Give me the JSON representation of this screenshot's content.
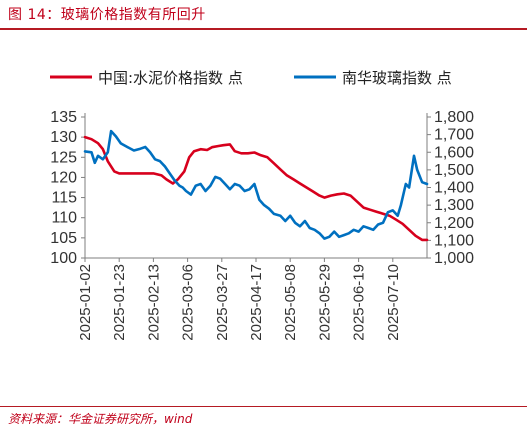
{
  "figure": {
    "title": "图 14：玻璃价格指数有所回升",
    "source": "资料来源：华金证券研究所，wind"
  },
  "chart_data": {
    "type": "line",
    "legend_position": "top",
    "grid": false,
    "x_ticks": [
      "2025-01-02",
      "2025-01-23",
      "2025-02-13",
      "2025-03-06",
      "2025-03-27",
      "2025-04-17",
      "2025-05-08",
      "2025-05-29",
      "2025-06-19",
      "2025-07-10"
    ],
    "x_range": [
      "2025-01-02",
      "2025-07-31"
    ],
    "y_left": {
      "ticks": [
        "100",
        "105",
        "110",
        "115",
        "120",
        "125",
        "130",
        "135"
      ],
      "range": [
        100,
        135
      ]
    },
    "y_right": {
      "ticks": [
        "1,000",
        "1,100",
        "1,200",
        "1,300",
        "1,400",
        "1,500",
        "1,600",
        "1,700",
        "1,800"
      ],
      "range": [
        1000,
        1800
      ]
    },
    "series": [
      {
        "name": "中国:水泥价格指数 点",
        "axis": "left",
        "color": "#d7001d",
        "points": [
          [
            "2025-01-02",
            130
          ],
          [
            "2025-01-06",
            129.5
          ],
          [
            "2025-01-10",
            128.5
          ],
          [
            "2025-01-13",
            127
          ],
          [
            "2025-01-16",
            124
          ],
          [
            "2025-01-20",
            121.5
          ],
          [
            "2025-01-23",
            121
          ],
          [
            "2025-01-30",
            121
          ],
          [
            "2025-02-06",
            121
          ],
          [
            "2025-02-13",
            121
          ],
          [
            "2025-02-18",
            120.5
          ],
          [
            "2025-02-21",
            119.5
          ],
          [
            "2025-02-25",
            118.5
          ],
          [
            "2025-02-28",
            119.5
          ],
          [
            "2025-03-04",
            121.5
          ],
          [
            "2025-03-07",
            125
          ],
          [
            "2025-03-10",
            126.5
          ],
          [
            "2025-03-14",
            127
          ],
          [
            "2025-03-18",
            126.8
          ],
          [
            "2025-03-21",
            127.5
          ],
          [
            "2025-03-25",
            127.8
          ],
          [
            "2025-03-28",
            128
          ],
          [
            "2025-04-01",
            128.2
          ],
          [
            "2025-04-04",
            126.5
          ],
          [
            "2025-04-08",
            126
          ],
          [
            "2025-04-12",
            126
          ],
          [
            "2025-04-16",
            126.2
          ],
          [
            "2025-04-20",
            125.5
          ],
          [
            "2025-04-24",
            125
          ],
          [
            "2025-04-28",
            123.5
          ],
          [
            "2025-05-02",
            122
          ],
          [
            "2025-05-06",
            120.5
          ],
          [
            "2025-05-10",
            119.5
          ],
          [
            "2025-05-14",
            118.5
          ],
          [
            "2025-05-18",
            117.5
          ],
          [
            "2025-05-22",
            116.5
          ],
          [
            "2025-05-26",
            115.5
          ],
          [
            "2025-05-29",
            115
          ],
          [
            "2025-06-02",
            115.5
          ],
          [
            "2025-06-06",
            115.8
          ],
          [
            "2025-06-10",
            116
          ],
          [
            "2025-06-14",
            115.5
          ],
          [
            "2025-06-18",
            114
          ],
          [
            "2025-06-22",
            112.5
          ],
          [
            "2025-06-26",
            112
          ],
          [
            "2025-06-30",
            111.5
          ],
          [
            "2025-07-04",
            111
          ],
          [
            "2025-07-08",
            110.5
          ],
          [
            "2025-07-12",
            109.5
          ],
          [
            "2025-07-16",
            108.5
          ],
          [
            "2025-07-20",
            107
          ],
          [
            "2025-07-24",
            105.5
          ],
          [
            "2025-07-28",
            104.5
          ],
          [
            "2025-07-31",
            104.5
          ]
        ]
      },
      {
        "name": "南华玻璃指数 点",
        "axis": "right",
        "color": "#0070c0",
        "points": [
          [
            "2025-01-02",
            1605
          ],
          [
            "2025-01-06",
            1600
          ],
          [
            "2025-01-08",
            1540
          ],
          [
            "2025-01-10",
            1580
          ],
          [
            "2025-01-13",
            1560
          ],
          [
            "2025-01-16",
            1600
          ],
          [
            "2025-01-18",
            1720
          ],
          [
            "2025-01-21",
            1690
          ],
          [
            "2025-01-24",
            1650
          ],
          [
            "2025-01-28",
            1630
          ],
          [
            "2025-02-01",
            1610
          ],
          [
            "2025-02-05",
            1620
          ],
          [
            "2025-02-08",
            1630
          ],
          [
            "2025-02-11",
            1600
          ],
          [
            "2025-02-14",
            1560
          ],
          [
            "2025-02-17",
            1550
          ],
          [
            "2025-02-20",
            1520
          ],
          [
            "2025-02-23",
            1480
          ],
          [
            "2025-02-26",
            1440
          ],
          [
            "2025-03-01",
            1410
          ],
          [
            "2025-03-03",
            1400
          ],
          [
            "2025-03-05",
            1380
          ],
          [
            "2025-03-08",
            1360
          ],
          [
            "2025-03-11",
            1410
          ],
          [
            "2025-03-14",
            1420
          ],
          [
            "2025-03-17",
            1380
          ],
          [
            "2025-03-20",
            1410
          ],
          [
            "2025-03-23",
            1460
          ],
          [
            "2025-03-26",
            1450
          ],
          [
            "2025-03-29",
            1420
          ],
          [
            "2025-04-01",
            1390
          ],
          [
            "2025-04-04",
            1420
          ],
          [
            "2025-04-07",
            1410
          ],
          [
            "2025-04-10",
            1380
          ],
          [
            "2025-04-13",
            1390
          ],
          [
            "2025-04-16",
            1420
          ],
          [
            "2025-04-19",
            1330
          ],
          [
            "2025-04-22",
            1300
          ],
          [
            "2025-04-25",
            1280
          ],
          [
            "2025-04-28",
            1250
          ],
          [
            "2025-05-02",
            1240
          ],
          [
            "2025-05-05",
            1210
          ],
          [
            "2025-05-08",
            1240
          ],
          [
            "2025-05-11",
            1200
          ],
          [
            "2025-05-14",
            1180
          ],
          [
            "2025-05-17",
            1210
          ],
          [
            "2025-05-20",
            1170
          ],
          [
            "2025-05-23",
            1160
          ],
          [
            "2025-05-26",
            1140
          ],
          [
            "2025-05-29",
            1110
          ],
          [
            "2025-06-01",
            1120
          ],
          [
            "2025-06-04",
            1150
          ],
          [
            "2025-06-07",
            1120
          ],
          [
            "2025-06-10",
            1130
          ],
          [
            "2025-06-13",
            1140
          ],
          [
            "2025-06-16",
            1160
          ],
          [
            "2025-06-19",
            1150
          ],
          [
            "2025-06-22",
            1180
          ],
          [
            "2025-06-25",
            1170
          ],
          [
            "2025-06-28",
            1160
          ],
          [
            "2025-07-01",
            1190
          ],
          [
            "2025-07-04",
            1200
          ],
          [
            "2025-07-07",
            1260
          ],
          [
            "2025-07-10",
            1270
          ],
          [
            "2025-07-13",
            1240
          ],
          [
            "2025-07-15",
            1300
          ],
          [
            "2025-07-18",
            1420
          ],
          [
            "2025-07-20",
            1400
          ],
          [
            "2025-07-23",
            1580
          ],
          [
            "2025-07-25",
            1500
          ],
          [
            "2025-07-28",
            1430
          ],
          [
            "2025-07-31",
            1420
          ]
        ]
      }
    ]
  }
}
